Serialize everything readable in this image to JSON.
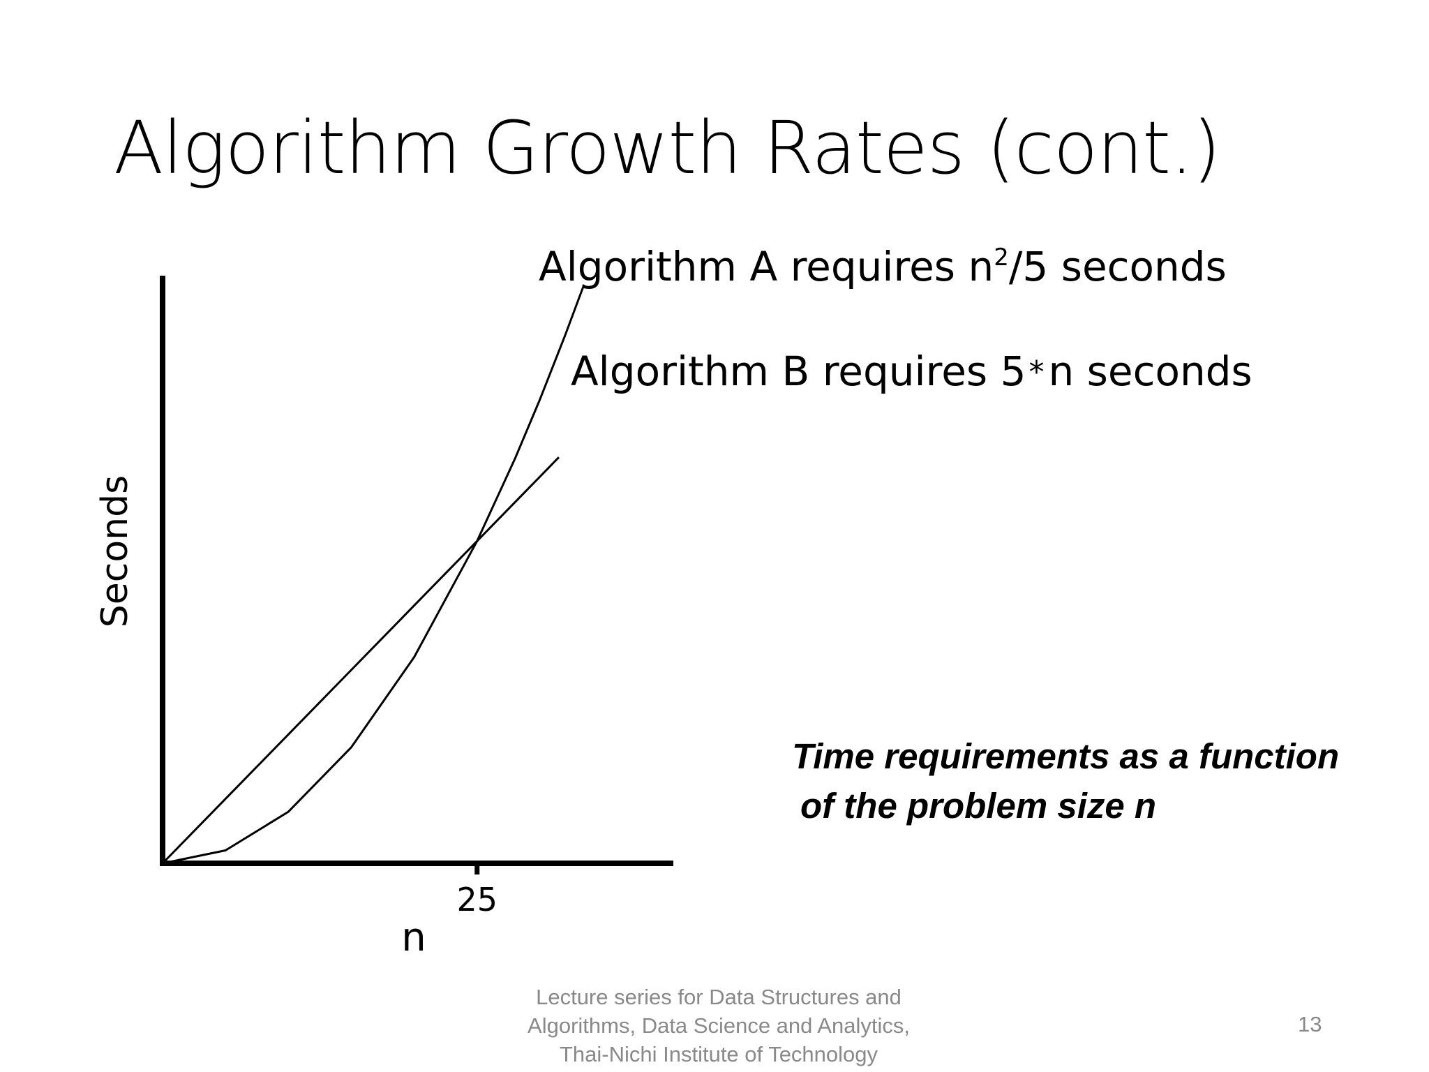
{
  "slide": {
    "title": "Algorithm Growth Rates (cont.)",
    "caption_line1": "Time requirements as a function",
    "caption_line2": "of the problem size n",
    "footer_line1": "Lecture series for Data Structures and",
    "footer_line2": "Algorithms, Data Science and Analytics,",
    "footer_line3": "Thai-Nichi Institute of Technology",
    "page_number": "13"
  },
  "chart_data": {
    "type": "line",
    "xlabel": "n",
    "ylabel": "Seconds",
    "x_ticks": [
      25
    ],
    "x_tick_labels": [
      "25"
    ],
    "xlim": [
      0,
      40.6
    ],
    "ylim": [
      0,
      232
    ],
    "grid": false,
    "series": [
      {
        "name": "Algorithm A requires n²/5 seconds",
        "label_main": "Algorithm A requires n",
        "label_sup": "2",
        "label_end": "/5 seconds",
        "expression": "n^2/5",
        "x": [
          0,
          5,
          10,
          15,
          20,
          25,
          28,
          30,
          32,
          33.5
        ],
        "y": [
          0,
          5,
          20,
          45,
          80,
          125,
          156.8,
          180,
          204.8,
          224.45
        ]
      },
      {
        "name": "Algorithm B requires 5*n seconds",
        "label_main": "Algorithm B requires 5",
        "label_star": "*",
        "label_end": "n seconds",
        "expression": "5*n",
        "x": [
          0,
          5,
          10,
          15,
          20,
          25,
          30,
          31.5
        ],
        "y": [
          0,
          25,
          50,
          75,
          100,
          125,
          150,
          157.5
        ]
      }
    ],
    "colors": {
      "axis": "#000000",
      "lines": "#000000"
    }
  }
}
